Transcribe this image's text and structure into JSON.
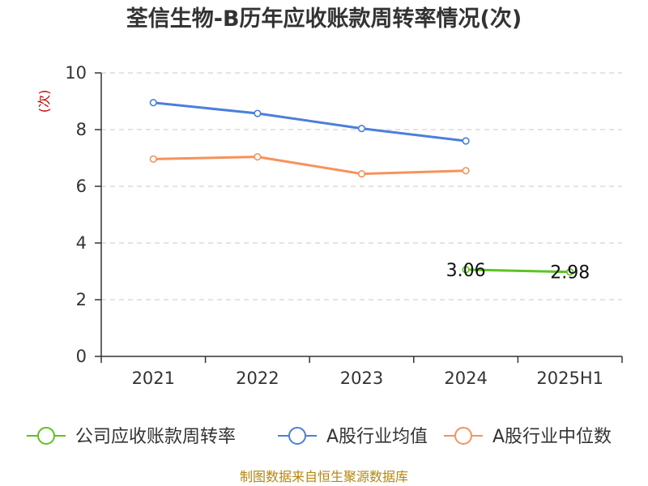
{
  "chart_data": {
    "type": "line",
    "title": "荃信生物-B历年应收账款周转率情况(次)",
    "ylabel": "(次)",
    "xlabel": "",
    "categories": [
      "2021",
      "2022",
      "2023",
      "2024",
      "2025H1"
    ],
    "yticks": [
      "0",
      "2",
      "4",
      "6",
      "8",
      "10"
    ],
    "ylim": [
      0,
      10
    ],
    "grid": true,
    "legend_position": "bottom",
    "series": [
      {
        "name": "公司应收账款周转率",
        "color": "#5cc31f",
        "values": [
          null,
          null,
          null,
          3.06,
          2.98
        ],
        "data_labels": [
          null,
          null,
          null,
          "3.06",
          "2.98"
        ]
      },
      {
        "name": "A股行业均值",
        "color": "#4a7fdb",
        "values": [
          8.95,
          8.57,
          8.04,
          7.6,
          null
        ]
      },
      {
        "name": "A股行业中位数",
        "color": "#f7925a",
        "values": [
          6.96,
          7.04,
          6.44,
          6.55,
          null
        ]
      }
    ]
  },
  "source": "制图数据来自恒生聚源数据库"
}
